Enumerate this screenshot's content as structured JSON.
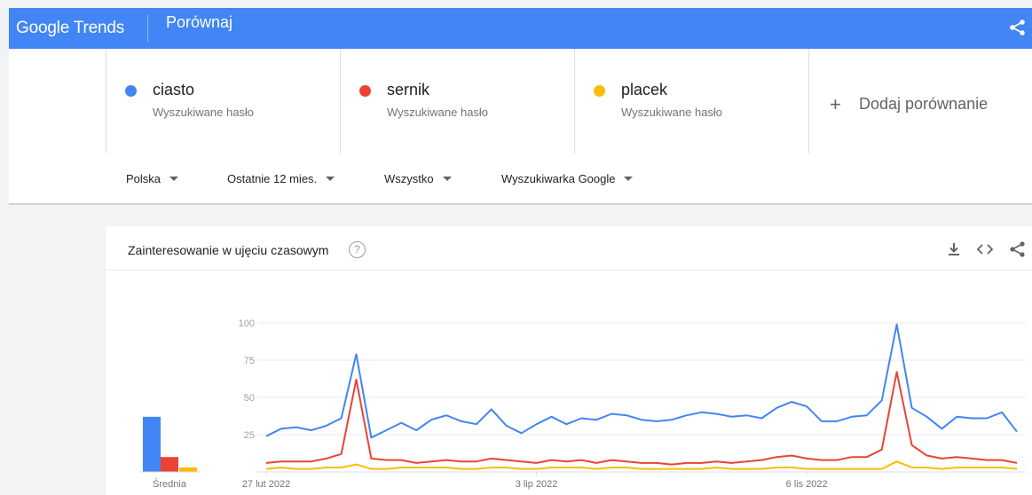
{
  "header": {
    "logo_google": "Google",
    "logo_trends": "Trends",
    "page_title": "Porównaj"
  },
  "terms": [
    {
      "name": "ciasto",
      "subtitle": "Wyszukiwane hasło",
      "color": "#4285f4"
    },
    {
      "name": "sernik",
      "subtitle": "Wyszukiwane hasło",
      "color": "#ea4335"
    },
    {
      "name": "placek",
      "subtitle": "Wyszukiwane hasło",
      "color": "#fbbc04"
    }
  ],
  "add_comparison": {
    "icon": "+",
    "label": "Dodaj porównanie"
  },
  "filters": {
    "region": "Polska",
    "time": "Ostatnie 12 mies.",
    "category": "Wszystko",
    "property": "Wyszukiwarka Google"
  },
  "card": {
    "title": "Zainteresowanie w ujęciu czasowym",
    "help_icon": "?",
    "tools": [
      "download-icon",
      "embed-icon",
      "share-icon"
    ]
  },
  "chart_data": {
    "type": "line",
    "ylim": [
      0,
      100
    ],
    "yticks": [
      25,
      50,
      75,
      100
    ],
    "xtick_labels": [
      "27 lut 2022",
      "3 lip 2022",
      "6 lis 2022"
    ],
    "xtick_index": [
      0,
      18,
      36
    ],
    "average_label": "Średnia",
    "averages": [
      {
        "name": "ciasto",
        "value": 37
      },
      {
        "name": "sernik",
        "value": 10
      },
      {
        "name": "placek",
        "value": 3
      }
    ],
    "series": [
      {
        "name": "ciasto",
        "color": "#4285f4",
        "values": [
          24,
          29,
          30,
          28,
          31,
          36,
          79,
          23,
          28,
          33,
          28,
          35,
          38,
          34,
          32,
          42,
          31,
          26,
          32,
          37,
          32,
          36,
          35,
          39,
          38,
          35,
          34,
          35,
          38,
          40,
          39,
          37,
          38,
          36,
          43,
          47,
          44,
          34,
          34,
          37,
          38,
          48,
          99,
          43,
          37,
          29,
          37,
          36,
          36,
          40,
          27
        ]
      },
      {
        "name": "sernik",
        "color": "#ea4335",
        "values": [
          6,
          7,
          7,
          7,
          9,
          12,
          62,
          9,
          8,
          8,
          6,
          7,
          8,
          7,
          7,
          9,
          8,
          7,
          6,
          8,
          7,
          8,
          6,
          8,
          7,
          6,
          6,
          5,
          6,
          6,
          7,
          6,
          7,
          8,
          10,
          11,
          9,
          8,
          8,
          10,
          10,
          15,
          67,
          18,
          11,
          9,
          10,
          9,
          8,
          8,
          6
        ]
      },
      {
        "name": "placek",
        "color": "#fbbc04",
        "values": [
          2,
          3,
          2,
          2,
          3,
          3,
          5,
          2,
          2,
          3,
          3,
          3,
          3,
          2,
          2,
          3,
          3,
          2,
          2,
          3,
          3,
          3,
          2,
          3,
          3,
          2,
          2,
          2,
          2,
          2,
          3,
          2,
          2,
          2,
          3,
          3,
          2,
          2,
          2,
          2,
          2,
          2,
          7,
          3,
          3,
          2,
          3,
          3,
          3,
          3,
          2
        ]
      }
    ]
  }
}
